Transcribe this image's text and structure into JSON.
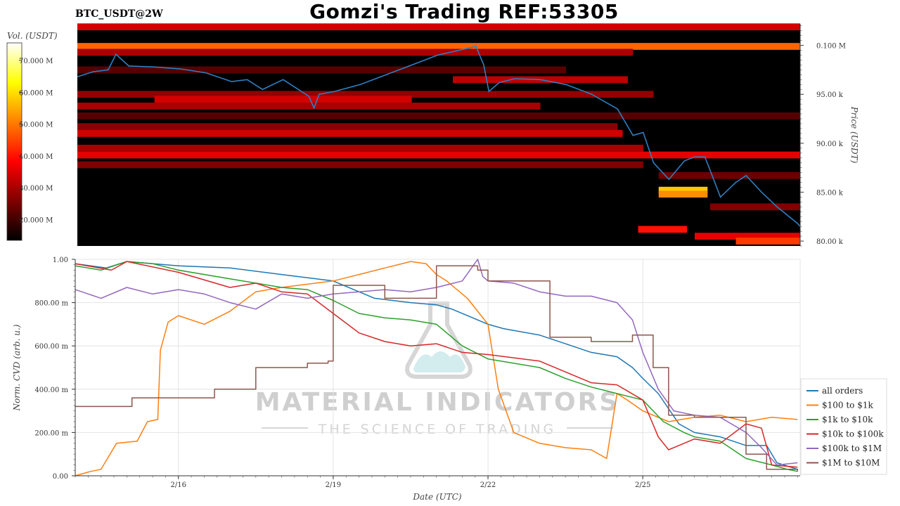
{
  "header": {
    "title": "Gomzi's Trading REF:53305",
    "symbol": "BTC_USDT@2W"
  },
  "watermark": {
    "brand": "MATERIAL INDICATORS",
    "tagline": "THE SCIENCE OF TRADING"
  },
  "colors": {
    "price_line": "#2f7fc1",
    "heatmap_bg": "#000000",
    "all_orders": "#1f77b4",
    "s100_1k": "#ff7f0e",
    "s1k_10k": "#2ca02c",
    "s10k_100k": "#d62728",
    "s100k_1m": "#9467bd",
    "s1m_10m": "#8c564b"
  },
  "chart_data": [
    {
      "type": "heatmap",
      "name_printed": "",
      "colorbar_label": "Vol. (USDT)",
      "colorbar_ticks": [
        "70.000 M",
        "60.000 M",
        "50.000 M",
        "40.000 M",
        "30.000 M",
        "20.000 M"
      ],
      "colorbar_tick_values": [
        70,
        60,
        50,
        40,
        30,
        20
      ],
      "colorbar_range": [
        13.5,
        75.5
      ],
      "ylabel": "Price (USDT)",
      "y_ticks": [
        "0.100 M",
        "95.00 k",
        "90.00 k",
        "85.00 k",
        "80.00 k"
      ],
      "y_tick_values": [
        100000,
        95000,
        90000,
        85000,
        80000
      ],
      "ylim": [
        79500,
        102200
      ],
      "xlim": [
        0,
        14.05
      ],
      "bands": [
        {
          "price": 101900,
          "t0": 0,
          "t1": 14.05,
          "vol": 34
        },
        {
          "price": 99900,
          "t0": 0,
          "t1": 14.05,
          "vol": 48
        },
        {
          "price": 99300,
          "t0": 0,
          "t1": 10.8,
          "vol": 30
        },
        {
          "price": 97500,
          "t0": 0,
          "t1": 9.5,
          "vol": 22
        },
        {
          "price": 96500,
          "t0": 7.3,
          "t1": 10.7,
          "vol": 32
        },
        {
          "price": 95000,
          "t0": 0,
          "t1": 11.2,
          "vol": 28
        },
        {
          "price": 94500,
          "t0": 1.5,
          "t1": 6.5,
          "vol": 34
        },
        {
          "price": 93800,
          "t0": 0,
          "t1": 9.0,
          "vol": 30
        },
        {
          "price": 92800,
          "t0": 0,
          "t1": 14.05,
          "vol": 22
        },
        {
          "price": 91700,
          "t0": 0,
          "t1": 10.5,
          "vol": 27
        },
        {
          "price": 91000,
          "t0": 0,
          "t1": 10.6,
          "vol": 34
        },
        {
          "price": 89500,
          "t0": 0,
          "t1": 11.0,
          "vol": 30
        },
        {
          "price": 88800,
          "t0": 0,
          "t1": 14.05,
          "vol": 36
        },
        {
          "price": 87800,
          "t0": 0,
          "t1": 11.0,
          "vol": 26
        },
        {
          "price": 86700,
          "t0": 11.3,
          "t1": 14.05,
          "vol": 24
        },
        {
          "price": 85200,
          "t0": 11.3,
          "t1": 12.25,
          "vol": 58
        },
        {
          "price": 84800,
          "t0": 11.3,
          "t1": 12.25,
          "vol": 52
        },
        {
          "price": 83500,
          "t0": 12.3,
          "t1": 14.05,
          "vol": 26
        },
        {
          "price": 81200,
          "t0": 10.9,
          "t1": 11.85,
          "vol": 40
        },
        {
          "price": 80500,
          "t0": 12.0,
          "t1": 14.05,
          "vol": 36
        },
        {
          "price": 80000,
          "t0": 12.8,
          "t1": 14.05,
          "vol": 44
        }
      ],
      "price_series": {
        "t": [
          0,
          0.3,
          0.6,
          0.75,
          1.0,
          1.5,
          2.0,
          2.5,
          3.0,
          3.3,
          3.6,
          4.0,
          4.5,
          4.6,
          4.7,
          5.0,
          5.5,
          6.0,
          6.5,
          7.0,
          7.5,
          7.75,
          7.9,
          8.0,
          8.2,
          8.5,
          9.0,
          9.5,
          10.0,
          10.5,
          10.8,
          11.0,
          11.2,
          11.5,
          11.8,
          12.0,
          12.2,
          12.5,
          12.8,
          13.0,
          13.3,
          13.6,
          14.0,
          14.05
        ],
        "price": [
          96800,
          97300,
          97500,
          99100,
          97900,
          97800,
          97600,
          97200,
          96300,
          96500,
          95500,
          96500,
          94800,
          93600,
          95000,
          95300,
          96000,
          97000,
          98000,
          99000,
          99600,
          99900,
          98000,
          95300,
          96200,
          96600,
          96500,
          96000,
          95000,
          93500,
          90800,
          91100,
          88000,
          86300,
          88200,
          88600,
          88600,
          84500,
          86000,
          86700,
          85000,
          83500,
          81800,
          81500
        ]
      }
    },
    {
      "type": "line",
      "xlabel": "Date (UTC)",
      "ylabel": "Norm. CVD (arb. u.)",
      "x_ticks": [
        "2/16",
        "2/19",
        "2/22",
        "2/25"
      ],
      "x_tick_values": [
        2,
        5,
        8,
        11
      ],
      "y_ticks": [
        "0.00",
        "200.00 m",
        "400.00 m",
        "600.00 m",
        "800.00 m",
        "1.00"
      ],
      "y_tick_values": [
        0,
        0.2,
        0.4,
        0.6,
        0.8,
        1.0
      ],
      "xlim": [
        0,
        14.05
      ],
      "ylim": [
        0,
        1.0
      ],
      "grid": true,
      "legend": "right",
      "series": [
        {
          "name": "all orders",
          "color": "#1f77b4",
          "step": false,
          "x": [
            0,
            0.6,
            1.0,
            2.0,
            3.0,
            4.0,
            5.0,
            5.8,
            6.5,
            7.0,
            7.3,
            7.6,
            8.0,
            8.3,
            9.0,
            9.5,
            10.0,
            10.5,
            10.8,
            11.0,
            11.3,
            11.7,
            12.0,
            12.5,
            13.0,
            13.4,
            13.6,
            14.0
          ],
          "y": [
            0.98,
            0.96,
            0.99,
            0.97,
            0.96,
            0.93,
            0.9,
            0.82,
            0.8,
            0.79,
            0.77,
            0.74,
            0.7,
            0.68,
            0.65,
            0.61,
            0.57,
            0.55,
            0.5,
            0.45,
            0.38,
            0.24,
            0.2,
            0.18,
            0.14,
            0.14,
            0.06,
            0.03
          ]
        },
        {
          "name": "$100 to $1k",
          "color": "#ff7f0e",
          "step": false,
          "x": [
            0,
            0.3,
            0.5,
            0.8,
            1.2,
            1.4,
            1.6,
            1.65,
            1.8,
            2.0,
            2.5,
            3.0,
            3.5,
            4.0,
            5.0,
            5.5,
            6.0,
            6.5,
            6.8,
            7.0,
            7.2,
            7.6,
            8.0,
            8.2,
            8.5,
            9.0,
            9.5,
            10.0,
            10.3,
            10.5,
            10.7,
            11.0,
            11.5,
            12.0,
            12.5,
            13.0,
            13.5,
            14.0
          ],
          "y": [
            0.0,
            0.02,
            0.03,
            0.15,
            0.16,
            0.25,
            0.26,
            0.58,
            0.71,
            0.74,
            0.7,
            0.76,
            0.85,
            0.87,
            0.9,
            0.93,
            0.96,
            0.99,
            0.98,
            0.93,
            0.9,
            0.82,
            0.7,
            0.4,
            0.2,
            0.15,
            0.13,
            0.12,
            0.08,
            0.38,
            0.35,
            0.3,
            0.25,
            0.27,
            0.28,
            0.25,
            0.27,
            0.26
          ]
        },
        {
          "name": "$1k to $10k",
          "color": "#2ca02c",
          "step": false,
          "x": [
            0,
            0.5,
            1.0,
            1.5,
            2.0,
            3.0,
            4.0,
            4.5,
            5.0,
            5.5,
            6.0,
            6.5,
            7.0,
            7.5,
            8.0,
            9.0,
            9.5,
            10.0,
            10.5,
            11.0,
            11.4,
            11.8,
            12.0,
            12.5,
            13.0,
            13.5,
            13.8,
            14.0
          ],
          "y": [
            0.97,
            0.95,
            0.99,
            0.98,
            0.95,
            0.91,
            0.87,
            0.86,
            0.81,
            0.75,
            0.73,
            0.72,
            0.7,
            0.6,
            0.54,
            0.5,
            0.45,
            0.41,
            0.38,
            0.35,
            0.25,
            0.2,
            0.18,
            0.16,
            0.08,
            0.05,
            0.03,
            0.02
          ]
        },
        {
          "name": "$10k to $100k",
          "color": "#d62728",
          "step": false,
          "x": [
            0,
            0.7,
            1.0,
            2.0,
            3.0,
            3.5,
            4.0,
            4.5,
            5.0,
            5.5,
            6.0,
            6.5,
            7.0,
            7.5,
            8.0,
            9.0,
            9.5,
            10.0,
            10.5,
            11.0,
            11.3,
            11.5,
            11.8,
            12.0,
            12.5,
            13.0,
            13.3,
            13.5,
            14.0
          ],
          "y": [
            0.98,
            0.95,
            0.99,
            0.94,
            0.87,
            0.89,
            0.85,
            0.84,
            0.75,
            0.66,
            0.62,
            0.6,
            0.61,
            0.57,
            0.56,
            0.53,
            0.48,
            0.43,
            0.42,
            0.35,
            0.18,
            0.12,
            0.15,
            0.17,
            0.15,
            0.24,
            0.22,
            0.05,
            0.04
          ]
        },
        {
          "name": "$100k to $1M",
          "color": "#9467bd",
          "step": false,
          "x": [
            0,
            0.5,
            1.0,
            1.5,
            2.0,
            2.5,
            3.0,
            3.5,
            4.0,
            4.5,
            5.0,
            5.5,
            6.0,
            6.5,
            7.0,
            7.5,
            7.8,
            7.9,
            8.0,
            8.5,
            9.0,
            9.5,
            10.0,
            10.5,
            10.8,
            11.0,
            11.3,
            11.6,
            12.0,
            12.5,
            13.0,
            13.3,
            13.6,
            14.0
          ],
          "y": [
            0.86,
            0.82,
            0.87,
            0.84,
            0.86,
            0.84,
            0.8,
            0.77,
            0.84,
            0.82,
            0.84,
            0.85,
            0.86,
            0.85,
            0.87,
            0.9,
            1.0,
            0.92,
            0.9,
            0.89,
            0.85,
            0.83,
            0.83,
            0.8,
            0.72,
            0.57,
            0.4,
            0.3,
            0.28,
            0.27,
            0.2,
            0.13,
            0.05,
            0.06
          ]
        },
        {
          "name": "$1M to $10M",
          "color": "#8c564b",
          "step": true,
          "x": [
            0,
            1.1,
            2.7,
            3.5,
            4.5,
            4.9,
            5.0,
            6.0,
            7.0,
            7.8,
            8.0,
            8.8,
            9.2,
            10.0,
            10.8,
            11.2,
            11.5,
            12.0,
            12.5,
            13.0,
            13.4,
            13.7,
            14.0
          ],
          "y": [
            0.32,
            0.36,
            0.4,
            0.5,
            0.52,
            0.53,
            0.88,
            0.82,
            0.97,
            0.95,
            0.9,
            0.9,
            0.64,
            0.62,
            0.65,
            0.5,
            0.28,
            0.27,
            0.27,
            0.1,
            0.03,
            0.03,
            0.02
          ]
        }
      ]
    }
  ]
}
